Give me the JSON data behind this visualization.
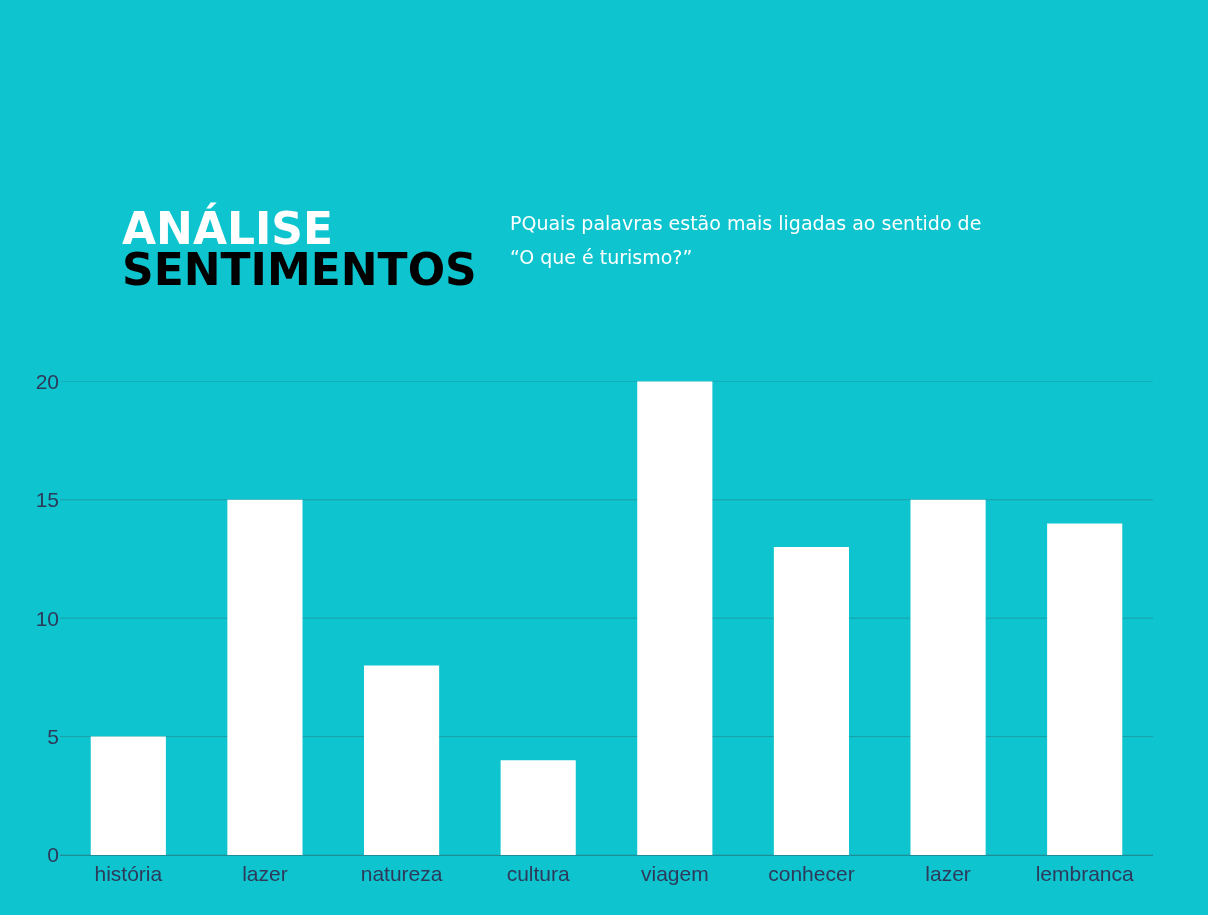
{
  "chart_data": {
    "type": "bar",
    "title": "ANÁLISE\nSENTIMENTOS",
    "subtitle": "PQuais palavras estão mais ligadas ao sentido de\n“O que é turismo?”",
    "categories": [
      "história",
      "lazer",
      "natureza",
      "cultura",
      "viagem",
      "conhecer",
      "lazer",
      "lembranca"
    ],
    "values": [
      5,
      15,
      8,
      4,
      20,
      13,
      15,
      14
    ],
    "color": "#ffffff",
    "ylim": [
      0,
      20
    ],
    "yticks": [
      0,
      5,
      10,
      15,
      20
    ],
    "grid": "y"
  }
}
